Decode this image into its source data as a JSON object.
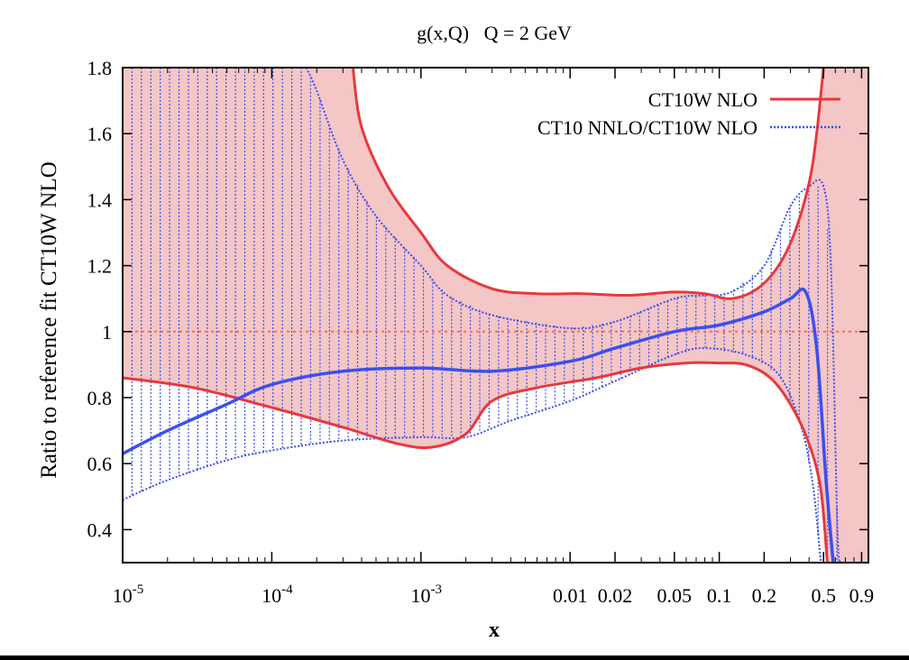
{
  "chart_data": {
    "type": "line",
    "title": "g(x,Q)   Q = 2 GeV",
    "xlabel": "x",
    "ylabel": "Ratio to reference fit CT10W NLO",
    "xscale": "log",
    "xlim": [
      1e-05,
      1.0
    ],
    "ylim": [
      0.3,
      1.8
    ],
    "xticks": [
      {
        "value": 1e-05,
        "base": "10",
        "exp": "-5"
      },
      {
        "value": 0.0001,
        "base": "10",
        "exp": "-4"
      },
      {
        "value": 0.001,
        "base": "10",
        "exp": "-3"
      },
      {
        "value": 0.01,
        "label": "0.01"
      },
      {
        "value": 0.02,
        "label": "0.02"
      },
      {
        "value": 0.05,
        "label": "0.05"
      },
      {
        "value": 0.1,
        "label": "0.1"
      },
      {
        "value": 0.2,
        "label": "0.2"
      },
      {
        "value": 0.5,
        "label": "0.5"
      },
      {
        "value": 0.9,
        "label": "0.9"
      }
    ],
    "yticks": [
      {
        "value": 0.4,
        "label": "0.4"
      },
      {
        "value": 0.6,
        "label": "0.6"
      },
      {
        "value": 0.8,
        "label": "0.8"
      },
      {
        "value": 1.0,
        "label": "1"
      },
      {
        "value": 1.2,
        "label": "1.2"
      },
      {
        "value": 1.4,
        "label": "1.4"
      },
      {
        "value": 1.6,
        "label": "1.6"
      },
      {
        "value": 1.8,
        "label": "1.8"
      }
    ],
    "reference_line": {
      "y": 1.0,
      "color": "#ff6a4d"
    },
    "legend_position": "top-right",
    "series": [
      {
        "name": "CT10W NLO",
        "color": "#e8383d",
        "fill": "#f4c6c6",
        "central": [
          [
            1e-05,
            1.0
          ],
          [
            1.0,
            1.0
          ]
        ],
        "upper": [
          [
            0.00035,
            1.8
          ],
          [
            0.0004,
            1.62
          ],
          [
            0.0006,
            1.44
          ],
          [
            0.001,
            1.3
          ],
          [
            0.0015,
            1.2
          ],
          [
            0.003,
            1.13
          ],
          [
            0.006,
            1.115
          ],
          [
            0.012,
            1.115
          ],
          [
            0.025,
            1.11
          ],
          [
            0.05,
            1.12
          ],
          [
            0.08,
            1.115
          ],
          [
            0.12,
            1.1
          ],
          [
            0.18,
            1.13
          ],
          [
            0.25,
            1.2
          ],
          [
            0.32,
            1.3
          ],
          [
            0.4,
            1.45
          ],
          [
            0.45,
            1.6
          ],
          [
            0.5,
            1.8
          ]
        ],
        "lower": [
          [
            1e-05,
            0.86
          ],
          [
            3e-05,
            0.83
          ],
          [
            0.0001,
            0.77
          ],
          [
            0.0003,
            0.71
          ],
          [
            0.0007,
            0.66
          ],
          [
            0.0012,
            0.65
          ],
          [
            0.002,
            0.69
          ],
          [
            0.003,
            0.79
          ],
          [
            0.006,
            0.83
          ],
          [
            0.015,
            0.86
          ],
          [
            0.03,
            0.89
          ],
          [
            0.06,
            0.905
          ],
          [
            0.1,
            0.905
          ],
          [
            0.15,
            0.9
          ],
          [
            0.22,
            0.86
          ],
          [
            0.3,
            0.78
          ],
          [
            0.4,
            0.66
          ],
          [
            0.48,
            0.52
          ],
          [
            0.53,
            0.3
          ]
        ]
      },
      {
        "name": "CT10 NNLO/CT10W NLO",
        "color": "#3b4ff0",
        "central": [
          [
            1e-05,
            0.63
          ],
          [
            2e-05,
            0.7
          ],
          [
            5e-05,
            0.78
          ],
          [
            0.0001,
            0.84
          ],
          [
            0.0003,
            0.88
          ],
          [
            0.001,
            0.89
          ],
          [
            0.003,
            0.88
          ],
          [
            0.01,
            0.91
          ],
          [
            0.02,
            0.95
          ],
          [
            0.05,
            1.0
          ],
          [
            0.1,
            1.02
          ],
          [
            0.2,
            1.06
          ],
          [
            0.3,
            1.1
          ],
          [
            0.38,
            1.12
          ],
          [
            0.45,
            0.95
          ],
          [
            0.52,
            0.55
          ],
          [
            0.58,
            0.3
          ]
        ],
        "upper": [
          [
            0.00017,
            1.8
          ],
          [
            0.0002,
            1.73
          ],
          [
            0.0003,
            1.52
          ],
          [
            0.0005,
            1.35
          ],
          [
            0.001,
            1.2
          ],
          [
            0.0015,
            1.11
          ],
          [
            0.003,
            1.05
          ],
          [
            0.01,
            1.01
          ],
          [
            0.02,
            1.03
          ],
          [
            0.05,
            1.1
          ],
          [
            0.08,
            1.11
          ],
          [
            0.12,
            1.12
          ],
          [
            0.2,
            1.2
          ],
          [
            0.3,
            1.38
          ],
          [
            0.4,
            1.44
          ],
          [
            0.5,
            1.44
          ],
          [
            0.56,
            1.2
          ],
          [
            0.62,
            0.4
          ],
          [
            0.65,
            0.3
          ]
        ],
        "lower": [
          [
            1e-05,
            0.49
          ],
          [
            2e-05,
            0.55
          ],
          [
            5e-05,
            0.61
          ],
          [
            0.0001,
            0.64
          ],
          [
            0.0003,
            0.67
          ],
          [
            0.001,
            0.68
          ],
          [
            0.002,
            0.68
          ],
          [
            0.004,
            0.73
          ],
          [
            0.01,
            0.79
          ],
          [
            0.02,
            0.85
          ],
          [
            0.05,
            0.93
          ],
          [
            0.08,
            0.95
          ],
          [
            0.15,
            0.93
          ],
          [
            0.25,
            0.87
          ],
          [
            0.35,
            0.72
          ],
          [
            0.42,
            0.55
          ],
          [
            0.48,
            0.3
          ]
        ]
      }
    ]
  }
}
